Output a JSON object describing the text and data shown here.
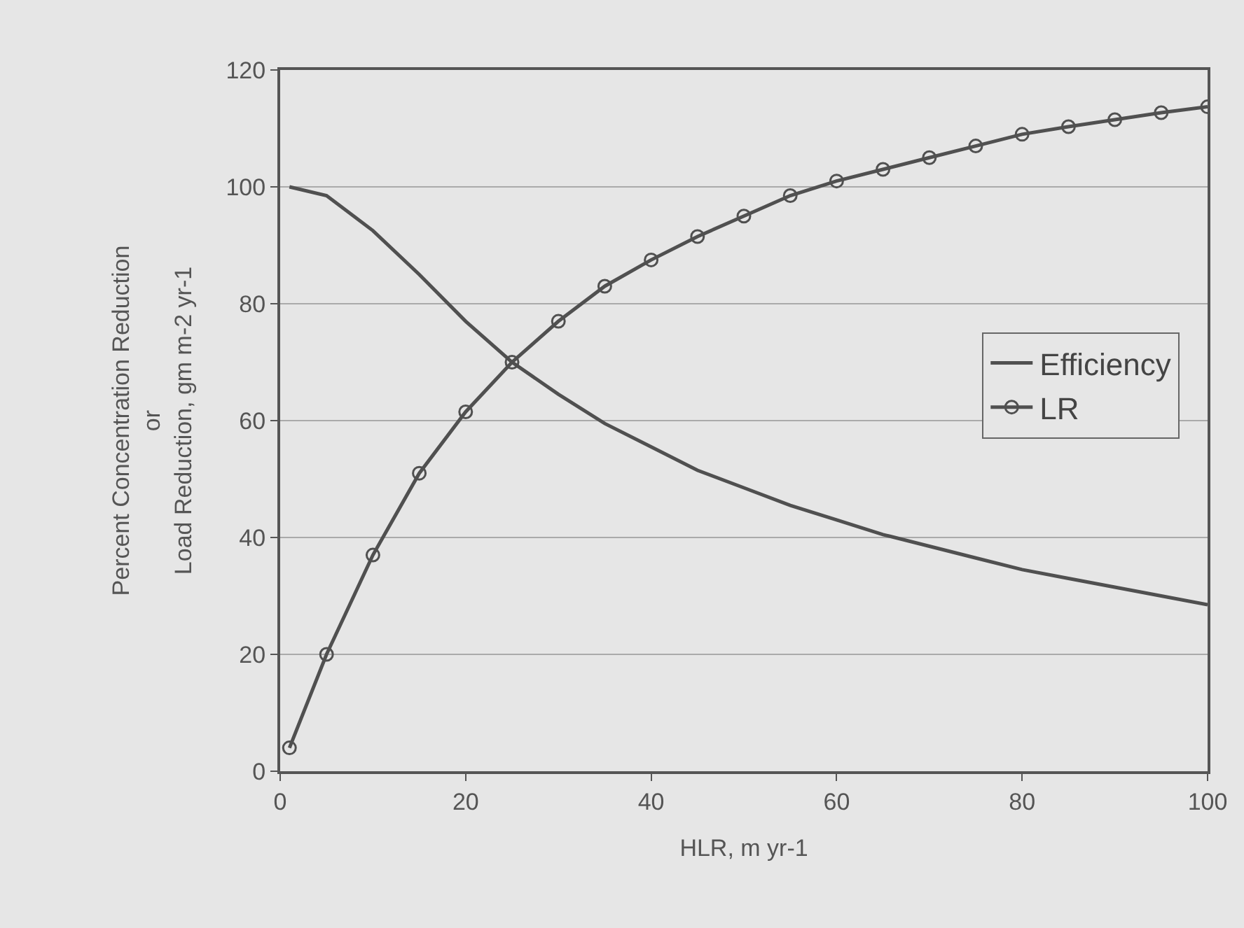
{
  "chart_data": {
    "type": "line",
    "xlabel": "HLR, m yr-1",
    "ylabel": "Percent Concentration Reduction\nor\nLoad Reduction, gm m-2 yr-1",
    "x": [
      1,
      5,
      10,
      15,
      20,
      25,
      30,
      35,
      40,
      45,
      50,
      55,
      60,
      65,
      70,
      75,
      80,
      85,
      90,
      95,
      100
    ],
    "series": [
      {
        "name": "Efficiency",
        "color": "#505050",
        "marker": "none",
        "values": [
          100,
          98.5,
          92.5,
          85,
          77,
          70,
          64.5,
          59.5,
          55.5,
          51.5,
          48.5,
          45.5,
          43,
          40.5,
          38.5,
          36.5,
          34.5,
          33,
          31.5,
          30,
          28.5
        ]
      },
      {
        "name": "LR",
        "color": "#505050",
        "marker": "circle",
        "values": [
          4,
          20,
          37,
          51,
          61.5,
          70,
          77,
          83,
          87.5,
          91.5,
          95,
          98.5,
          101,
          103,
          105,
          107,
          109,
          110.3,
          111.5,
          112.7,
          113.7
        ]
      }
    ],
    "xlim": [
      0,
      100
    ],
    "xticks": [
      0,
      20,
      40,
      60,
      80,
      100
    ],
    "ylim": [
      0,
      120
    ],
    "yticks": [
      0,
      20,
      40,
      60,
      80,
      100,
      120
    ],
    "grid": "y",
    "legend": "right",
    "line_style": "solid"
  }
}
